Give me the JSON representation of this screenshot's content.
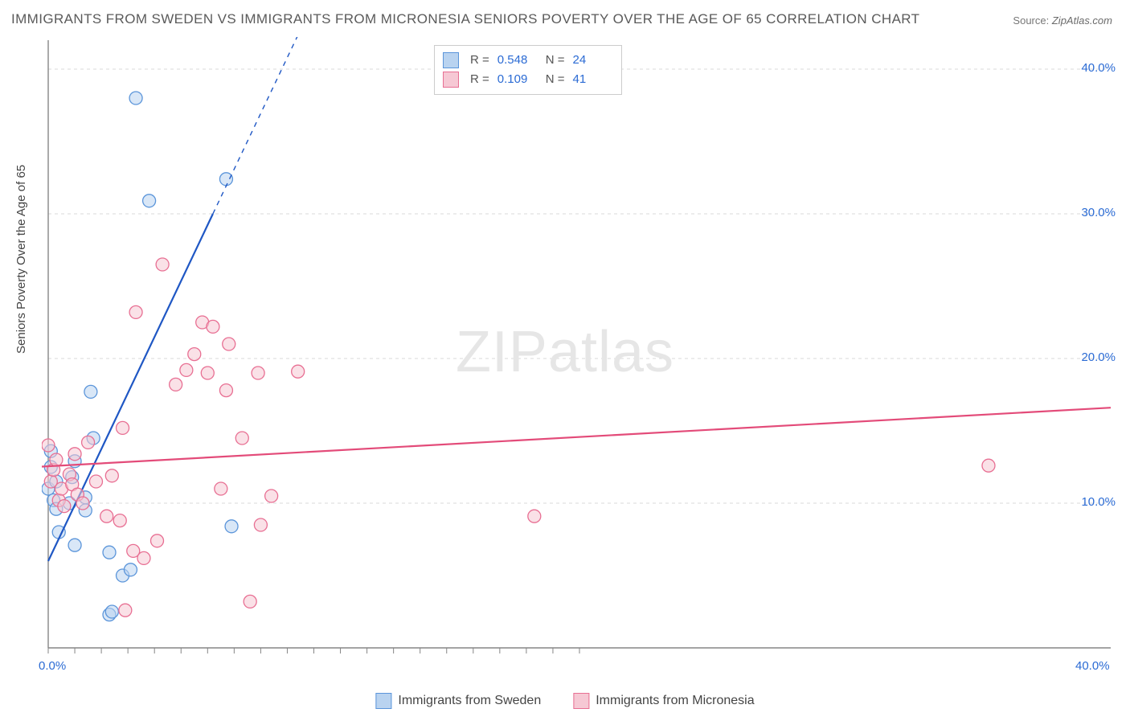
{
  "title": "IMMIGRANTS FROM SWEDEN VS IMMIGRANTS FROM MICRONESIA SENIORS POVERTY OVER THE AGE OF 65 CORRELATION CHART",
  "source_label": "Source:",
  "source_value": "ZipAtlas.com",
  "y_axis_label": "Seniors Poverty Over the Age of 65",
  "watermark_bold": "ZIP",
  "watermark_light": "atlas",
  "chart": {
    "type": "scatter",
    "xlim": [
      0,
      40
    ],
    "ylim": [
      0,
      42
    ],
    "x_ticks": [
      0,
      40
    ],
    "x_tick_labels": [
      "0.0%",
      "40.0%"
    ],
    "y_ticks": [
      10,
      20,
      30,
      40
    ],
    "y_tick_labels": [
      "10.0%",
      "20.0%",
      "30.0%",
      "40.0%"
    ],
    "x_minor_ticks": [
      0,
      1,
      2,
      3,
      4,
      5,
      6,
      7,
      8,
      9,
      10,
      11,
      12,
      13,
      14,
      15,
      16,
      17,
      18,
      19,
      20
    ],
    "background_color": "#ffffff",
    "grid_color": "#d9d9d9",
    "axis_line_color": "#858585",
    "point_radius": 8,
    "point_stroke_width": 1.3,
    "trend_stroke_width": 2.2,
    "series": [
      {
        "name": "Immigrants from Sweden",
        "key": "sweden",
        "fill": "#b9d3f0",
        "stroke": "#5b95da",
        "fill_opacity": 0.55,
        "trend_color": "#1f57c4",
        "R": "0.548",
        "N": "24",
        "trend": {
          "x1": 0,
          "y1": 6.0,
          "x2": 6.2,
          "y2": 30.0,
          "dash_x2": 9.7,
          "dash_y2": 43.5
        },
        "points": [
          [
            0.0,
            11.0
          ],
          [
            0.1,
            13.6
          ],
          [
            0.1,
            12.5
          ],
          [
            0.2,
            10.2
          ],
          [
            0.3,
            11.5
          ],
          [
            0.3,
            9.6
          ],
          [
            0.4,
            8.0
          ],
          [
            0.8,
            10.0
          ],
          [
            0.9,
            11.8
          ],
          [
            1.0,
            12.9
          ],
          [
            1.0,
            7.1
          ],
          [
            1.4,
            10.4
          ],
          [
            1.4,
            9.5
          ],
          [
            1.6,
            17.7
          ],
          [
            1.7,
            14.5
          ],
          [
            2.3,
            6.6
          ],
          [
            2.3,
            2.3
          ],
          [
            2.4,
            2.5
          ],
          [
            2.8,
            5.0
          ],
          [
            3.1,
            5.4
          ],
          [
            3.3,
            38.0
          ],
          [
            3.8,
            30.9
          ],
          [
            6.7,
            32.4
          ],
          [
            6.9,
            8.4
          ]
        ]
      },
      {
        "name": "Immigrants from Micronesia",
        "key": "micronesia",
        "fill": "#f6c8d4",
        "stroke": "#e86f93",
        "fill_opacity": 0.55,
        "trend_color": "#e34b79",
        "R": "0.109",
        "N": "41",
        "trend": {
          "x1": -0.5,
          "y1": 12.5,
          "x2": 40,
          "y2": 16.6
        },
        "points": [
          [
            0.0,
            14.0
          ],
          [
            0.1,
            11.5
          ],
          [
            0.2,
            12.3
          ],
          [
            0.3,
            13.0
          ],
          [
            0.4,
            10.2
          ],
          [
            0.5,
            11.0
          ],
          [
            0.6,
            9.8
          ],
          [
            0.8,
            12.0
          ],
          [
            0.9,
            11.3
          ],
          [
            1.0,
            13.4
          ],
          [
            1.1,
            10.6
          ],
          [
            1.3,
            10.0
          ],
          [
            1.5,
            14.2
          ],
          [
            1.8,
            11.5
          ],
          [
            2.2,
            9.1
          ],
          [
            2.4,
            11.9
          ],
          [
            2.7,
            8.8
          ],
          [
            2.8,
            15.2
          ],
          [
            2.9,
            2.6
          ],
          [
            3.2,
            6.7
          ],
          [
            3.3,
            23.2
          ],
          [
            3.6,
            6.2
          ],
          [
            4.1,
            7.4
          ],
          [
            4.3,
            26.5
          ],
          [
            4.8,
            18.2
          ],
          [
            5.2,
            19.2
          ],
          [
            5.5,
            20.3
          ],
          [
            5.8,
            22.5
          ],
          [
            6.0,
            19.0
          ],
          [
            6.2,
            22.2
          ],
          [
            6.5,
            11.0
          ],
          [
            6.8,
            21.0
          ],
          [
            7.3,
            14.5
          ],
          [
            7.6,
            3.2
          ],
          [
            7.9,
            19.0
          ],
          [
            8.0,
            8.5
          ],
          [
            8.4,
            10.5
          ],
          [
            9.4,
            19.1
          ],
          [
            18.3,
            9.1
          ],
          [
            35.4,
            12.6
          ],
          [
            6.7,
            17.8
          ]
        ]
      }
    ]
  },
  "legend_top": {
    "rows": [
      {
        "swatch_fill": "#b9d3f0",
        "swatch_stroke": "#5b95da",
        "R_label": "R =",
        "R": "0.548",
        "N_label": "N =",
        "N": "24"
      },
      {
        "swatch_fill": "#f6c8d4",
        "swatch_stroke": "#e86f93",
        "R_label": "R =",
        "R": "0.109",
        "N_label": "N =",
        "N": "41"
      }
    ]
  },
  "legend_bottom": {
    "items": [
      {
        "swatch_fill": "#b9d3f0",
        "swatch_stroke": "#5b95da",
        "label": "Immigrants from Sweden"
      },
      {
        "swatch_fill": "#f6c8d4",
        "swatch_stroke": "#e86f93",
        "label": "Immigrants from Micronesia"
      }
    ]
  }
}
